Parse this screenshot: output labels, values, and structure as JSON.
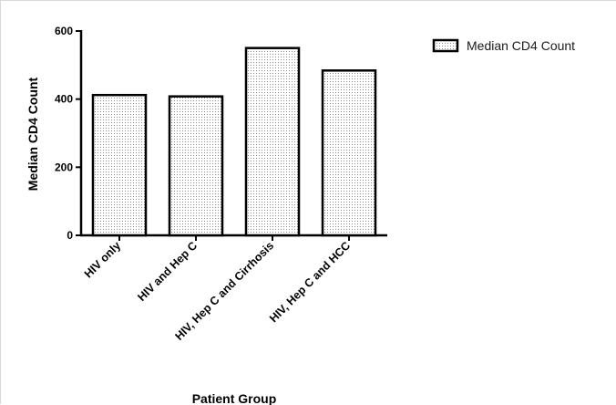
{
  "chart_data": {
    "type": "bar",
    "categories": [
      "HIV only",
      "HIV and Hep C",
      "HIV, Hep C and Cirrhosis",
      "HIV, Hep C and HCC"
    ],
    "series": [
      {
        "name": "Median CD4 Count",
        "values": [
          412,
          408,
          550,
          484
        ]
      }
    ],
    "title": "",
    "xlabel": "Patient Group",
    "ylabel": "Median  CD4  Count",
    "ylim": [
      0,
      600
    ],
    "yticks": [
      0,
      200,
      400,
      600
    ],
    "grid": false,
    "legend": "top-right",
    "bar_fill": "dotted",
    "colors": {
      "bar_outline": "#000000",
      "bar_fill": "#ffffff",
      "dots": "#8c8c8c"
    }
  }
}
